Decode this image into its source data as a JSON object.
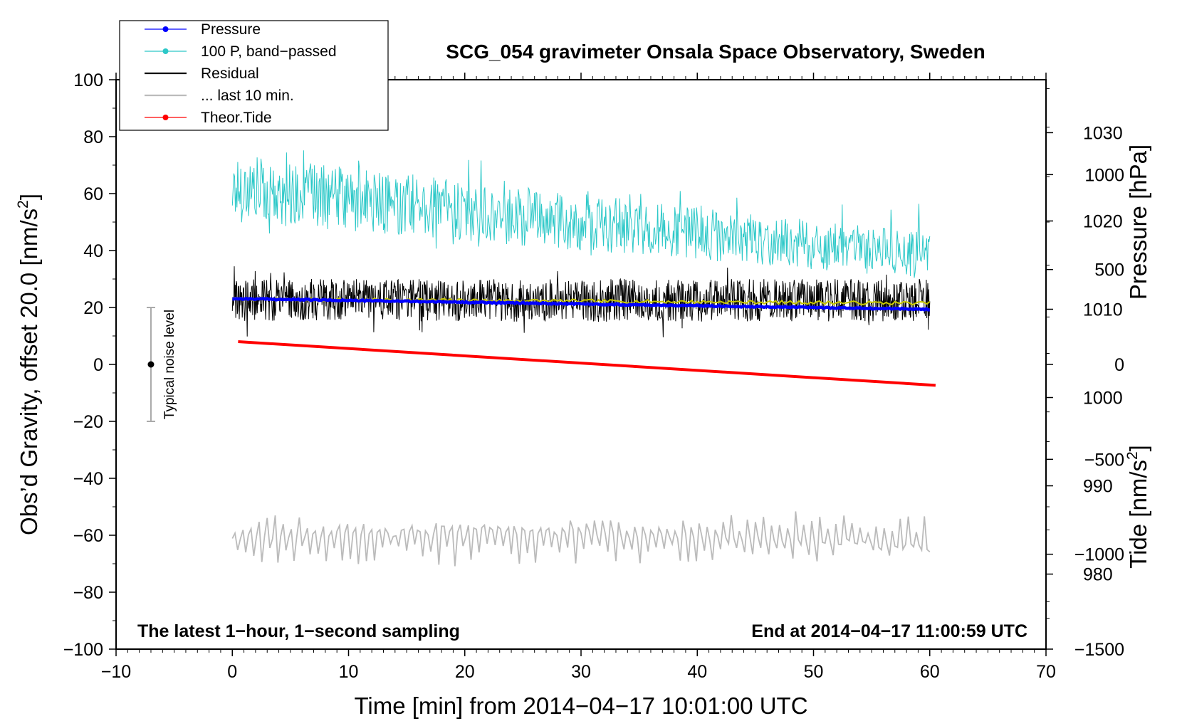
{
  "chart_data": {
    "type": "line",
    "title": "SCG_054 gravimeter Onsala Space Observatory, Sweden",
    "xlabel": "Time [min] from 2014−04−17 10:01:00 UTC",
    "ylabel_left": "Obs’d Gravity, offset 20.0 [nm/s",
    "ylabel_left_sup": "2",
    "ylabel_left_close": "]",
    "ylabel_right_pressure": "Pressure [hPa]",
    "ylabel_right_tide": "Tide [nm/s",
    "ylabel_right_tide_sup": "2",
    "ylabel_right_tide_close": "]",
    "xlim": [
      -10,
      70
    ],
    "ylim": [
      -100,
      100
    ],
    "pressure_axis_range": [
      971.5,
      1036
    ],
    "tide_axis_range": [
      -1500,
      1500
    ],
    "x_ticks": [
      -10,
      0,
      10,
      20,
      30,
      40,
      50,
      60,
      70
    ],
    "x_tick_labels": [
      "−10",
      "0",
      "10",
      "20",
      "30",
      "40",
      "50",
      "60",
      "70"
    ],
    "y_ticks": [
      100,
      80,
      60,
      40,
      20,
      0,
      -20,
      -40,
      -60,
      -80,
      -100
    ],
    "y_tick_labels": [
      "100",
      "80",
      "60",
      "40",
      "20",
      "0",
      "−20",
      "−40",
      "−60",
      "−80",
      "−100"
    ],
    "pressure_ticks": [
      980,
      990,
      1000,
      1010,
      1020,
      1030
    ],
    "pressure_tick_labels": [
      "980",
      "990",
      "1000",
      "1010",
      "1020",
      "1030"
    ],
    "tide_ticks": [
      1000,
      500,
      0,
      -500,
      -1000,
      -1500
    ],
    "tide_tick_labels": [
      "1000",
      "500",
      "0",
      "−500",
      "−1000",
      "−1500"
    ],
    "legend": [
      {
        "label": "Pressure",
        "color": "#0000ff",
        "marker": true
      },
      {
        "label": "100 P, band−passed",
        "color": "#2cc8c8",
        "marker": true
      },
      {
        "label": "Residual",
        "color": "#000000",
        "marker": false
      },
      {
        "label": "... last 10 min.",
        "color": "#bbbbbb",
        "marker": false
      },
      {
        "label": "Theor.Tide",
        "color": "#ff0000",
        "marker": true
      }
    ],
    "notes": {
      "left": "The latest 1−hour, 1−second sampling",
      "right": "End at 2014−04−17 11:00:59 UTC"
    },
    "noise_bar": {
      "label": "Typical noise level",
      "x": -7,
      "center": 0,
      "low": -20,
      "high": 20
    },
    "series": [
      {
        "name": "Pressure",
        "unit": "hPa",
        "color": "#0000ff",
        "x_start": 0,
        "x_end": 60,
        "start": 1011.2,
        "end": 1010.0
      },
      {
        "name": "100 P, band−passed",
        "unit": "nm/s2",
        "color": "#2cc8c8",
        "x_start": 0,
        "x_end": 60,
        "center_start": 62,
        "center_end": 38,
        "amplitude_start": 12,
        "amplitude_end": 8
      },
      {
        "name": "Residual",
        "unit": "nm/s2",
        "color": "#000000",
        "x_start": 0,
        "x_end": 60,
        "center": 22.5,
        "amplitude": 7.5
      },
      {
        "name": "Residual smoothed",
        "unit": "nm/s2",
        "color": "#c8c800",
        "x_start": 0,
        "x_end": 60,
        "start": 23,
        "end": 21.5
      },
      {
        "name": "... last 10 min.",
        "unit": "nm/s2",
        "color": "#bbbbbb",
        "x_start": 0,
        "x_end": 60,
        "center": -61,
        "amplitude": 6
      },
      {
        "name": "Theor.Tide",
        "unit": "nm/s2",
        "color": "#ff0000",
        "x_start": 0.5,
        "x_end": 60.5,
        "start": 120,
        "end": -110
      }
    ]
  }
}
